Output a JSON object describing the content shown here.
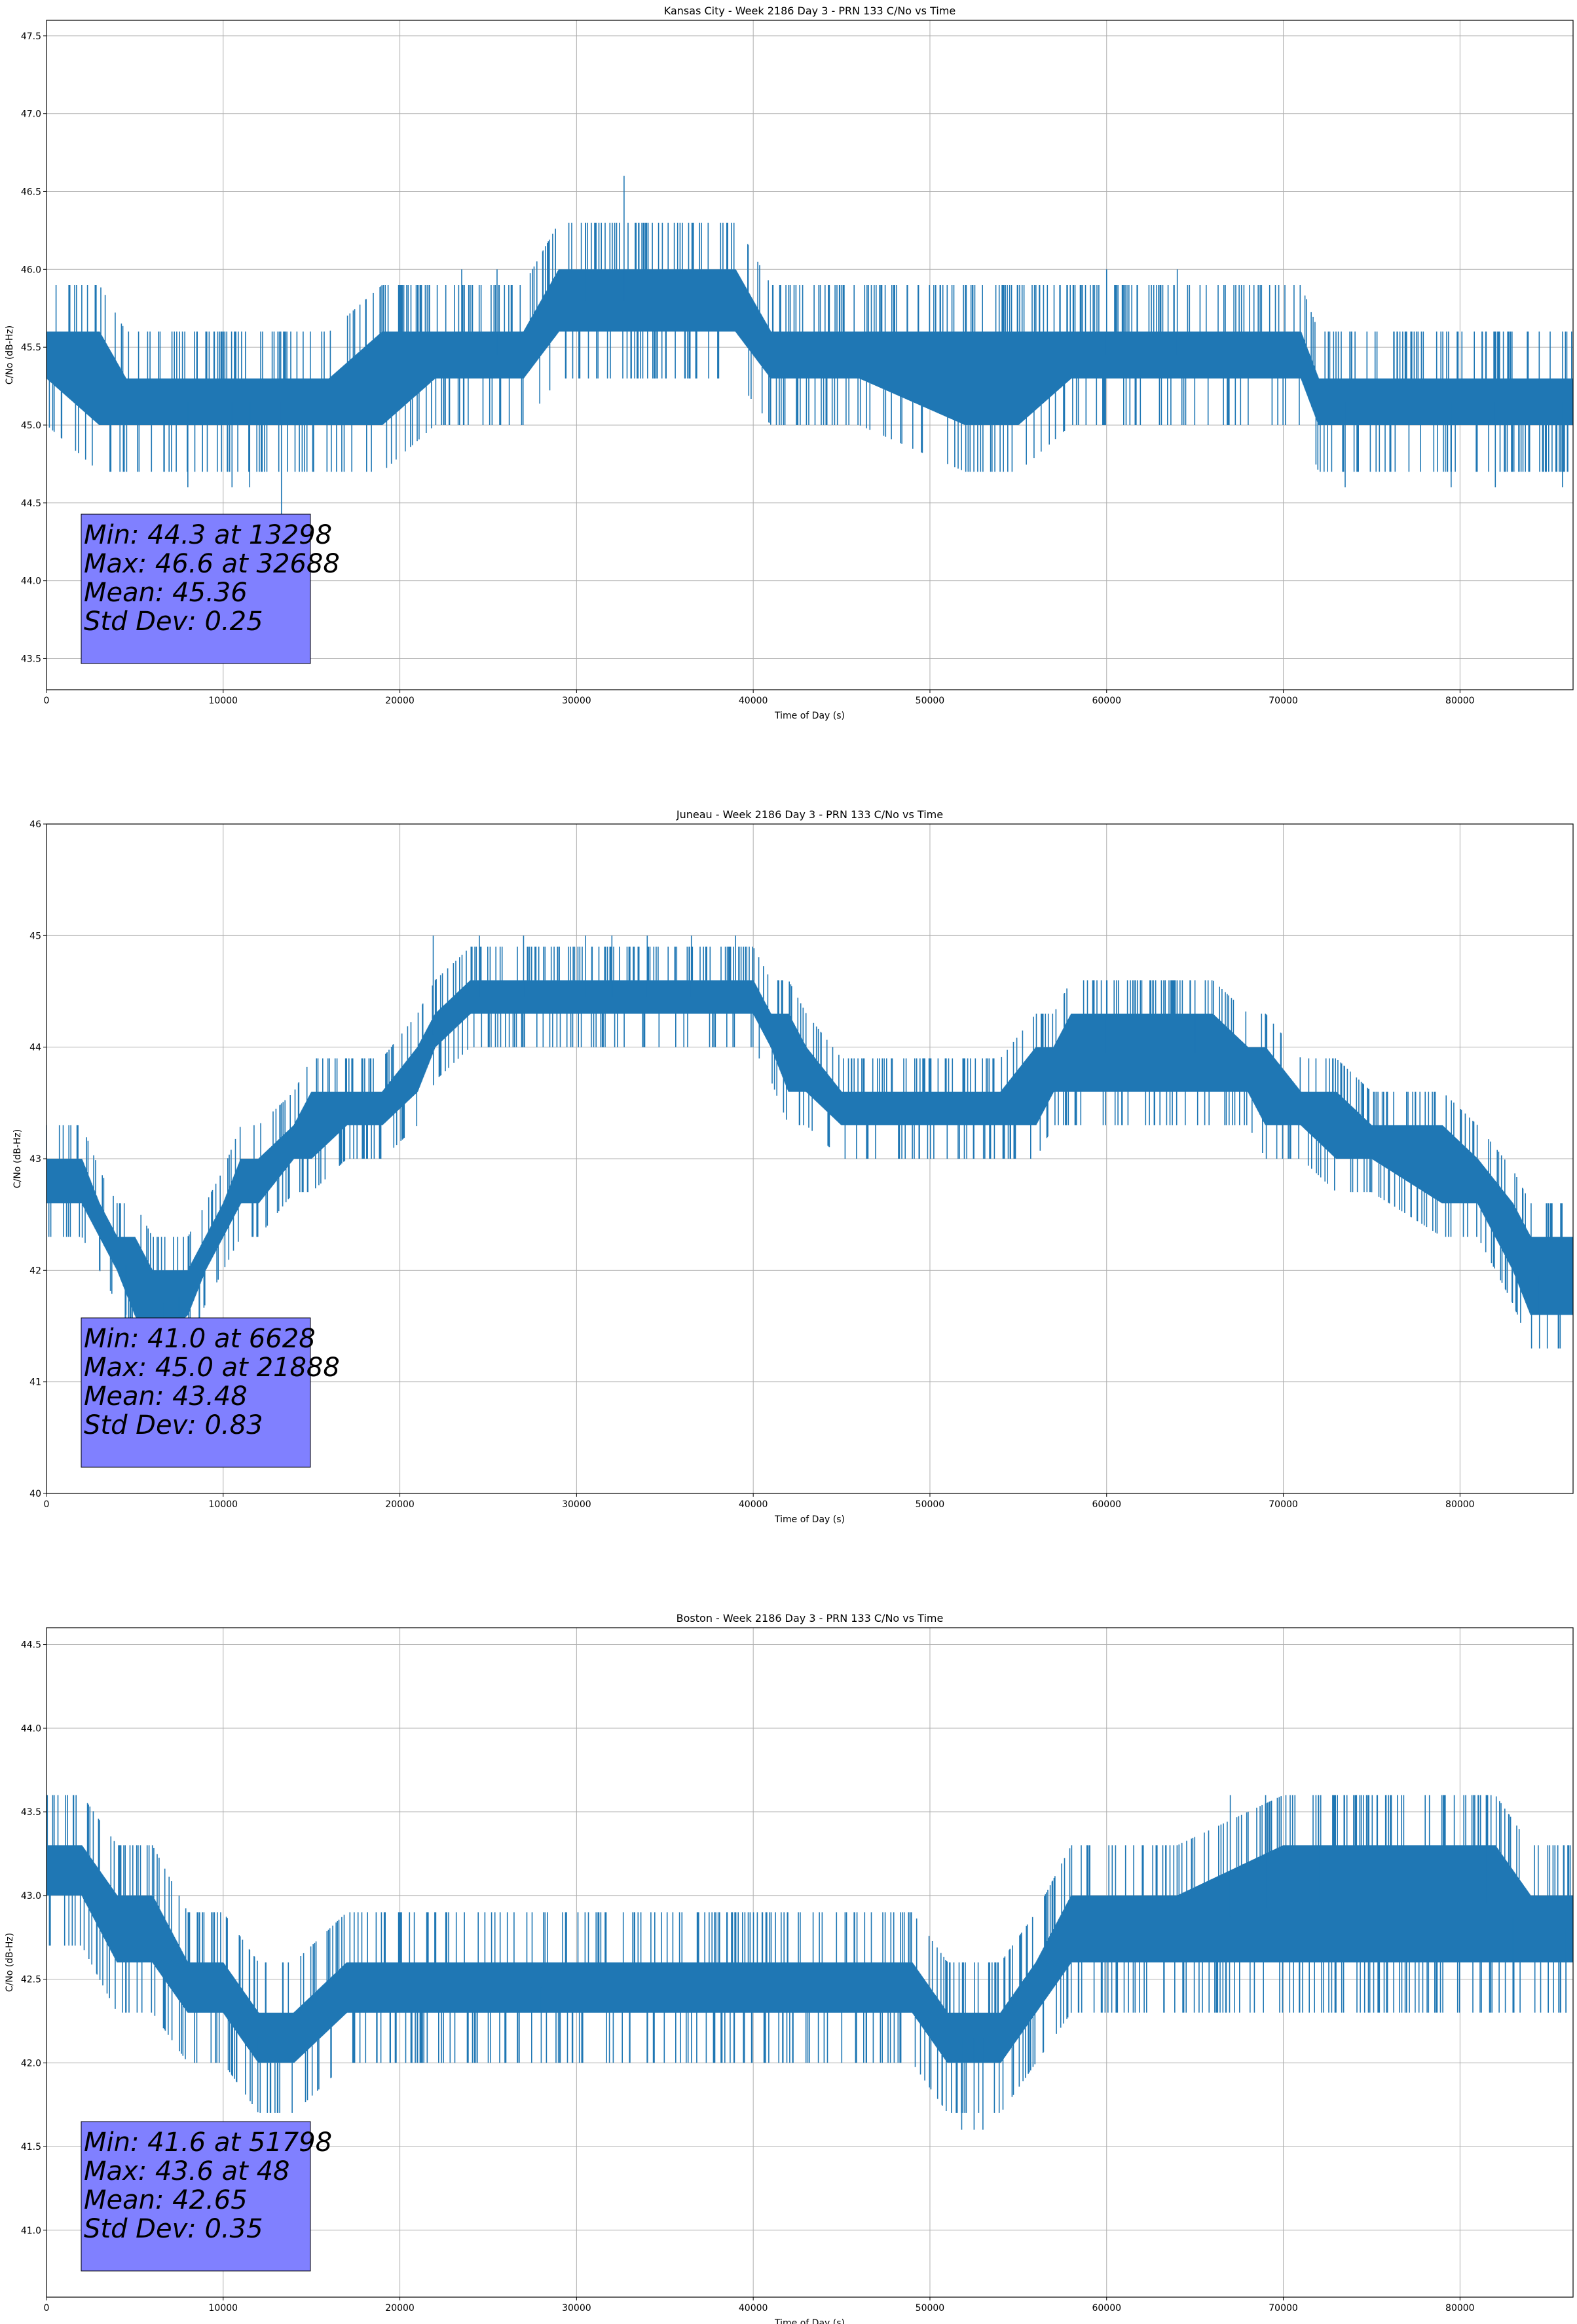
{
  "colors": {
    "series": "#1f77b4",
    "stats_box_fill": "#8080ff",
    "grid": "#b0b0b0",
    "background": "#ffffff"
  },
  "chart_data": [
    {
      "type": "line",
      "title": "Kansas City - Week 2186 Day 3 - PRN 133 C/No vs Time",
      "xlabel": "Time of Day (s)",
      "ylabel": "C/No (dB-Hz)",
      "xlim": [
        0,
        86400
      ],
      "ylim": [
        43.3,
        47.6
      ],
      "xticks": [
        0,
        10000,
        20000,
        30000,
        40000,
        50000,
        60000,
        70000,
        80000
      ],
      "xtick_labels": [
        "0",
        "10000",
        "20000",
        "30000",
        "40000",
        "50000",
        "60000",
        "70000",
        "80000"
      ],
      "yticks": [
        43.5,
        44.0,
        44.5,
        45.0,
        45.5,
        46.0,
        46.5,
        47.0,
        47.5
      ],
      "ytick_labels": [
        "43.5",
        "44.0",
        "44.5",
        "45.0",
        "45.5",
        "46.0",
        "46.5",
        "47.0",
        "47.5"
      ],
      "grid": true,
      "stats_lines": [
        "Min: 44.3 at 13298",
        "Max: 46.6 at 32688",
        "Mean: 45.36",
        "Std Dev: 0.25"
      ],
      "stats_placement": "bottom-left",
      "series": [
        {
          "x": [
            0,
            3000,
            4500,
            6000,
            8000,
            12000,
            16000,
            19000,
            22000,
            23500,
            27000,
            29000,
            34000,
            39000,
            41000,
            46000,
            52000,
            55000,
            58000,
            62000,
            68000,
            71000,
            72000,
            75000,
            78000,
            81000,
            84000,
            86400
          ],
          "band_lo": [
            45.3,
            45.0,
            45.0,
            45.0,
            45.0,
            45.0,
            45.0,
            45.0,
            45.3,
            45.3,
            45.3,
            45.6,
            45.6,
            45.6,
            45.3,
            45.3,
            45.0,
            45.0,
            45.3,
            45.3,
            45.3,
            45.3,
            45.0,
            45.0,
            45.0,
            45.0,
            45.0,
            45.0
          ],
          "band_hi": [
            45.6,
            45.6,
            45.3,
            45.3,
            45.3,
            45.3,
            45.3,
            45.6,
            45.6,
            45.6,
            45.6,
            46.0,
            46.0,
            46.0,
            45.6,
            45.6,
            45.6,
            45.6,
            45.6,
            45.6,
            45.6,
            45.6,
            45.3,
            45.3,
            45.3,
            45.3,
            45.3,
            45.3
          ],
          "spikes": [
            [
              13298,
              44.3
            ],
            [
              32688,
              46.6
            ],
            [
              30500,
              46.3
            ],
            [
              8000,
              44.6
            ],
            [
              10500,
              44.6
            ],
            [
              11500,
              44.6
            ],
            [
              73500,
              44.6
            ],
            [
              79500,
              44.6
            ],
            [
              82000,
              44.6
            ],
            [
              85800,
              44.6
            ],
            [
              60000,
              46.0
            ],
            [
              64000,
              46.0
            ],
            [
              23500,
              46.0
            ],
            [
              25500,
              46.0
            ]
          ]
        }
      ]
    },
    {
      "type": "line",
      "title": "Juneau - Week 2186 Day 3 - PRN 133 C/No vs Time",
      "xlabel": "Time of Day (s)",
      "ylabel": "C/No (dB-Hz)",
      "xlim": [
        0,
        86400
      ],
      "ylim": [
        40,
        46
      ],
      "xticks": [
        0,
        10000,
        20000,
        30000,
        40000,
        50000,
        60000,
        70000,
        80000
      ],
      "xtick_labels": [
        "0",
        "10000",
        "20000",
        "30000",
        "40000",
        "50000",
        "60000",
        "70000",
        "80000"
      ],
      "yticks": [
        40,
        41,
        42,
        43,
        44,
        45,
        46
      ],
      "ytick_labels": [
        "40",
        "41",
        "42",
        "43",
        "44",
        "45",
        "46"
      ],
      "grid": true,
      "stats_lines": [
        "Min: 41.0 at 6628",
        "Max: 45.0 at 21888",
        "Mean: 43.48",
        "Std Dev: 0.83"
      ],
      "stats_placement": "bottom-left",
      "series": [
        {
          "x": [
            0,
            2000,
            3000,
            4000,
            5000,
            6000,
            8000,
            9000,
            10000,
            11000,
            12000,
            14000,
            15000,
            17000,
            19000,
            21000,
            22000,
            24000,
            30000,
            36000,
            40000,
            41000,
            42000,
            43000,
            45000,
            47000,
            52000,
            54000,
            56000,
            57000,
            58000,
            60000,
            62000,
            64000,
            66000,
            68000,
            69000,
            71000,
            73000,
            75000,
            79000,
            81000,
            83000,
            84000,
            86400
          ],
          "band_lo": [
            42.6,
            42.6,
            42.3,
            42.0,
            41.6,
            41.3,
            41.6,
            42.0,
            42.3,
            42.6,
            42.6,
            43.0,
            43.0,
            43.3,
            43.3,
            43.6,
            44.0,
            44.3,
            44.3,
            44.3,
            44.3,
            44.0,
            43.6,
            43.6,
            43.3,
            43.3,
            43.3,
            43.3,
            43.3,
            43.6,
            43.6,
            43.6,
            43.6,
            43.6,
            43.6,
            43.6,
            43.3,
            43.3,
            43.0,
            43.0,
            42.6,
            42.6,
            42.0,
            41.6,
            41.6
          ],
          "band_hi": [
            43.0,
            43.0,
            42.6,
            42.3,
            42.3,
            42.0,
            42.0,
            42.3,
            42.6,
            43.0,
            43.0,
            43.3,
            43.6,
            43.6,
            43.6,
            44.0,
            44.3,
            44.6,
            44.6,
            44.6,
            44.6,
            44.3,
            44.3,
            44.0,
            43.6,
            43.6,
            43.6,
            43.6,
            44.0,
            44.0,
            44.3,
            44.3,
            44.3,
            44.3,
            44.3,
            44.0,
            44.0,
            43.6,
            43.6,
            43.3,
            43.3,
            43.0,
            42.6,
            42.3,
            42.3
          ],
          "spikes": [
            [
              6628,
              41.0
            ],
            [
              21888,
              45.0
            ],
            [
              24500,
              45.0
            ],
            [
              27000,
              45.0
            ],
            [
              30500,
              45.0
            ],
            [
              32000,
              45.0
            ],
            [
              34000,
              45.0
            ],
            [
              36500,
              45.0
            ],
            [
              39000,
              45.0
            ],
            [
              60000,
              44.6
            ],
            [
              65000,
              44.6
            ],
            [
              84500,
              41.3
            ],
            [
              85000,
              42.6
            ],
            [
              4500,
              41.6
            ],
            [
              7500,
              41.3
            ]
          ]
        }
      ]
    },
    {
      "type": "line",
      "title": "Boston - Week 2186 Day 3 - PRN 133 C/No vs Time",
      "xlabel": "Time of Day (s)",
      "ylabel": "C/No (dB-Hz)",
      "xlim": [
        0,
        86400
      ],
      "ylim": [
        40.6,
        44.6
      ],
      "xticks": [
        0,
        10000,
        20000,
        30000,
        40000,
        50000,
        60000,
        70000,
        80000
      ],
      "xtick_labels": [
        "0",
        "10000",
        "20000",
        "30000",
        "40000",
        "50000",
        "60000",
        "70000",
        "80000"
      ],
      "yticks": [
        41.0,
        41.5,
        42.0,
        42.5,
        43.0,
        43.5,
        44.0,
        44.5
      ],
      "ytick_labels": [
        "41.0",
        "41.5",
        "42.0",
        "42.5",
        "43.0",
        "43.5",
        "44.0",
        "44.5"
      ],
      "grid": true,
      "stats_lines": [
        "Min: 41.6 at 51798",
        "Max: 43.6 at 48",
        "Mean: 42.65",
        "Std Dev: 0.35"
      ],
      "stats_placement": "bottom-left",
      "series": [
        {
          "x": [
            0,
            2000,
            4000,
            6000,
            8000,
            10000,
            12000,
            14000,
            17000,
            20000,
            30000,
            40000,
            46000,
            49000,
            51000,
            54000,
            56000,
            58000,
            60000,
            64000,
            70000,
            75000,
            80000,
            82000,
            84000,
            86400
          ],
          "band_lo": [
            43.0,
            43.0,
            42.6,
            42.6,
            42.3,
            42.3,
            42.0,
            42.0,
            42.3,
            42.3,
            42.3,
            42.3,
            42.3,
            42.3,
            42.0,
            42.0,
            42.3,
            42.6,
            42.6,
            42.6,
            42.6,
            42.6,
            42.6,
            42.6,
            42.6,
            42.6
          ],
          "band_hi": [
            43.3,
            43.3,
            43.0,
            43.0,
            42.6,
            42.6,
            42.3,
            42.3,
            42.6,
            42.6,
            42.6,
            42.6,
            42.6,
            42.6,
            42.3,
            42.3,
            42.6,
            43.0,
            43.0,
            43.0,
            43.3,
            43.3,
            43.3,
            43.3,
            43.0,
            43.0
          ],
          "spikes": [
            [
              48,
              43.6
            ],
            [
              51798,
              41.6
            ],
            [
              52500,
              41.6
            ],
            [
              53000,
              41.6
            ],
            [
              67000,
              43.6
            ],
            [
              69000,
              43.6
            ],
            [
              72000,
              43.6
            ],
            [
              81500,
              43.6
            ],
            [
              83000,
              42.3
            ],
            [
              85000,
              42.3
            ],
            [
              86000,
              42.3
            ],
            [
              12000,
              42.0
            ],
            [
              28000,
              42.0
            ]
          ]
        }
      ]
    }
  ]
}
